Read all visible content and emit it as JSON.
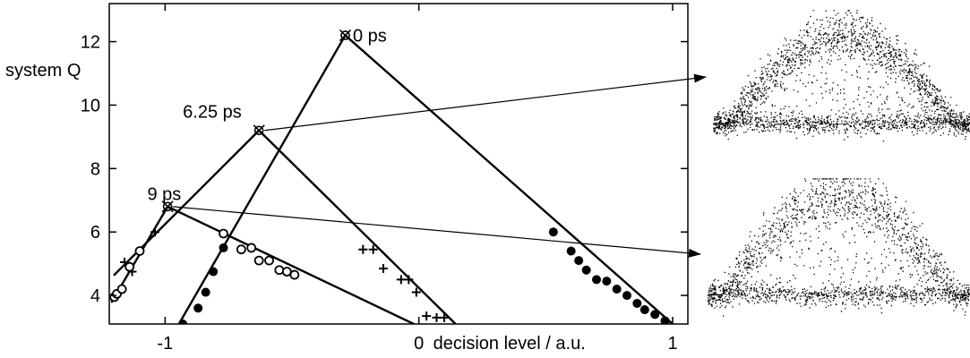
{
  "chart_data": {
    "type": "scatter",
    "ylabel": "system Q",
    "xlabel": "decision level / a.u.",
    "xlim": [
      -1.22,
      1.06
    ],
    "ylim": [
      3.1,
      13.2
    ],
    "x_ticks": [
      {
        "value": -1,
        "label": "-1"
      },
      {
        "value": 0,
        "label": "0"
      },
      {
        "value": 1,
        "label": "1"
      }
    ],
    "y_ticks": [
      4,
      6,
      8,
      10,
      12
    ],
    "series": [
      {
        "name": "0 ps",
        "marker": "filled-circle",
        "peak": {
          "x": -0.29,
          "y": 12.2
        },
        "points": [
          [
            -0.93,
            3.1
          ],
          [
            -0.87,
            3.6
          ],
          [
            -0.84,
            4.1
          ],
          [
            -0.81,
            4.75
          ],
          [
            -0.77,
            5.5
          ],
          [
            0.53,
            6.0
          ],
          [
            0.6,
            5.4
          ],
          [
            0.63,
            5.1
          ],
          [
            0.66,
            4.8
          ],
          [
            0.7,
            4.5
          ],
          [
            0.74,
            4.45
          ],
          [
            0.78,
            4.2
          ],
          [
            0.82,
            4.0
          ],
          [
            0.86,
            3.75
          ],
          [
            0.89,
            3.55
          ],
          [
            0.93,
            3.4
          ],
          [
            0.97,
            3.2
          ]
        ],
        "fit_lines": [
          [
            [
              -0.96,
              2.9
            ],
            [
              -0.29,
              12.2
            ]
          ],
          [
            [
              -0.29,
              12.2
            ],
            [
              1.0,
              3.1
            ]
          ]
        ]
      },
      {
        "name": "6.25 ps",
        "marker": "plus",
        "peak": {
          "x": -0.63,
          "y": 9.2
        },
        "points": [
          [
            -1.16,
            5.05
          ],
          [
            -1.13,
            4.75
          ],
          [
            -1.1,
            5.4
          ],
          [
            -1.04,
            6.0
          ],
          [
            -0.22,
            5.45
          ],
          [
            -0.18,
            5.45
          ],
          [
            -0.14,
            4.85
          ],
          [
            -0.07,
            4.5
          ],
          [
            -0.04,
            4.5
          ],
          [
            -0.01,
            4.1
          ],
          [
            0.03,
            3.35
          ],
          [
            0.07,
            3.3
          ],
          [
            0.1,
            3.3
          ]
        ],
        "fit_lines": [
          [
            [
              -1.2,
              4.65
            ],
            [
              -0.63,
              9.2
            ]
          ],
          [
            [
              -0.63,
              9.2
            ],
            [
              0.17,
              2.9
            ]
          ]
        ]
      },
      {
        "name": "9 ps",
        "marker": "open-circle",
        "peak": {
          "x": -0.99,
          "y": 6.8
        },
        "points": [
          [
            -1.2,
            3.95
          ],
          [
            -1.19,
            4.05
          ],
          [
            -1.17,
            4.2
          ],
          [
            -1.14,
            4.9
          ],
          [
            -1.1,
            5.4
          ],
          [
            -0.77,
            5.95
          ],
          [
            -0.7,
            5.45
          ],
          [
            -0.66,
            5.5
          ],
          [
            -0.63,
            5.1
          ],
          [
            -0.59,
            5.1
          ],
          [
            -0.55,
            4.8
          ],
          [
            -0.52,
            4.75
          ],
          [
            -0.49,
            4.65
          ]
        ],
        "fit_lines": [
          [
            [
              -1.21,
              3.8
            ],
            [
              -0.99,
              6.8
            ]
          ],
          [
            [
              -0.99,
              6.8
            ],
            [
              -0.02,
              3.1
            ]
          ]
        ]
      }
    ],
    "annotations": [
      {
        "text": "0 ps",
        "x": -0.26,
        "y": 12.2
      },
      {
        "text": "6.25 ps",
        "x": -0.93,
        "y": 9.8
      },
      {
        "text": "9 ps",
        "x": -1.07,
        "y": 7.2
      }
    ],
    "eye_insets": [
      {
        "source_series": "6.25 ps",
        "position": "top-right",
        "description": "eye diagram"
      },
      {
        "source_series": "9 ps",
        "position": "bottom-right",
        "description": "eye diagram"
      }
    ]
  }
}
